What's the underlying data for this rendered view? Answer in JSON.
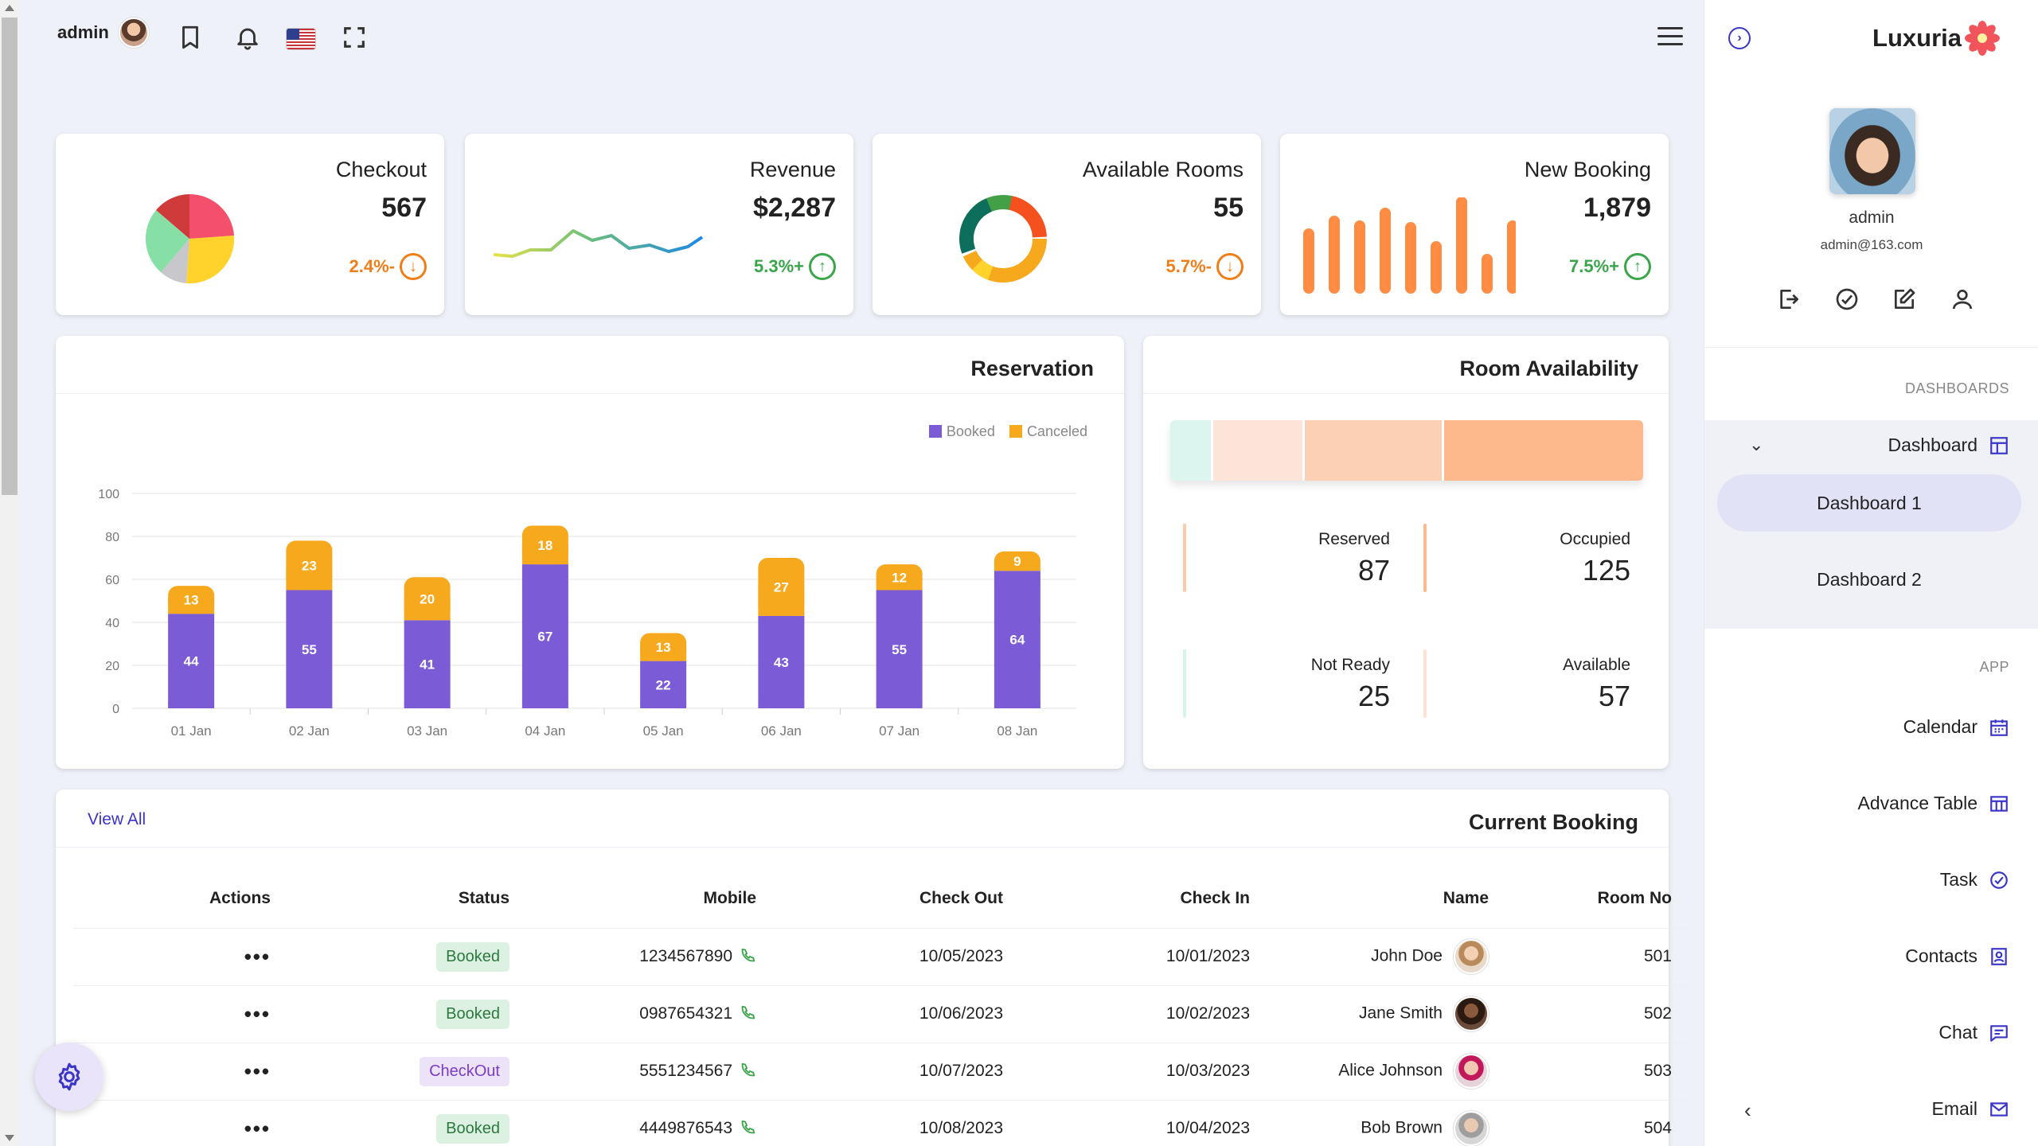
{
  "header": {
    "username": "admin"
  },
  "stats": [
    {
      "title": "Checkout",
      "value": "567",
      "trend": "2.4%-",
      "direction": "down"
    },
    {
      "title": "Revenue",
      "value": "$2,287",
      "trend": "5.3%+",
      "direction": "up"
    },
    {
      "title": "Available Rooms",
      "value": "55",
      "trend": "5.7%-",
      "direction": "down"
    },
    {
      "title": "New Booking",
      "value": "1,879",
      "trend": "7.5%+",
      "direction": "up"
    }
  ],
  "chart_data": {
    "type": "bar",
    "stacked": true,
    "title": "Reservation",
    "categories": [
      "01 Jan",
      "02 Jan",
      "03 Jan",
      "04 Jan",
      "05 Jan",
      "06 Jan",
      "07 Jan",
      "08 Jan"
    ],
    "series": [
      {
        "name": "Booked",
        "values": [
          44,
          55,
          41,
          67,
          22,
          43,
          55,
          64
        ],
        "color": "#7b5bd6"
      },
      {
        "name": "Canceled",
        "values": [
          13,
          23,
          20,
          18,
          13,
          27,
          12,
          9
        ],
        "color": "#f7a91e"
      }
    ],
    "yticks": [
      "0",
      "20",
      "40",
      "60",
      "80",
      "100"
    ],
    "ylim": [
      0,
      100
    ],
    "grid": true,
    "legend": "top-right"
  },
  "room_availability": {
    "title": "Room Availability",
    "segments": [
      {
        "value": 25,
        "color": "#ddf5ef"
      },
      {
        "value": 57,
        "color": "#fde4d9"
      },
      {
        "value": 87,
        "color": "#fcd0b5"
      },
      {
        "value": 125,
        "color": "#fdb88c"
      }
    ],
    "items": [
      {
        "label": "Reserved",
        "value": "87",
        "color": "#fbc9ad"
      },
      {
        "label": "Occupied",
        "value": "125",
        "color": "#fcb98f"
      },
      {
        "label": "Not Ready",
        "value": "25",
        "color": "#d6f3ec"
      },
      {
        "label": "Available",
        "value": "57",
        "color": "#fde1d3"
      }
    ]
  },
  "booking": {
    "title": "Current Booking",
    "view_all": "View All",
    "columns": [
      "Actions",
      "Status",
      "Mobile",
      "Check Out",
      "Check In",
      "Name",
      "Room No"
    ],
    "rows": [
      {
        "actions": "•••",
        "status": "Booked",
        "mobile": "1234567890",
        "check_out": "10/05/2023",
        "check_in": "10/01/2023",
        "name": "John Doe",
        "room": "501"
      },
      {
        "actions": "•••",
        "status": "Booked",
        "mobile": "0987654321",
        "check_out": "10/06/2023",
        "check_in": "10/02/2023",
        "name": "Jane Smith",
        "room": "502"
      },
      {
        "actions": "•••",
        "status": "CheckOut",
        "mobile": "5551234567",
        "check_out": "10/07/2023",
        "check_in": "10/03/2023",
        "name": "Alice Johnson",
        "room": "503"
      },
      {
        "actions": "•••",
        "status": "Booked",
        "mobile": "4449876543",
        "check_out": "10/08/2023",
        "check_in": "10/04/2023",
        "name": "Bob Brown",
        "room": "504"
      }
    ]
  },
  "sidebar": {
    "brand": "Luxuria",
    "profile_name": "admin",
    "profile_email": "admin@163.com",
    "group_dashboards": "DASHBOARDS",
    "dashboard_label": "Dashboard",
    "dashboard_subs": [
      "Dashboard 1",
      "Dashboard 2"
    ],
    "group_app": "APP",
    "app_items": [
      {
        "label": "Calendar",
        "icon": "calendar-icon"
      },
      {
        "label": "Advance Table",
        "icon": "table-icon"
      },
      {
        "label": "Task",
        "icon": "check-circle-icon"
      },
      {
        "label": "Contacts",
        "icon": "contacts-icon"
      },
      {
        "label": "Chat",
        "icon": "chat-icon"
      },
      {
        "label": "Email",
        "icon": "mail-icon"
      }
    ]
  },
  "colors": {
    "accent": "#3a35c8",
    "booked": "#7b5bd6",
    "canceled": "#f7a91e",
    "trend_up": "#3aa54b",
    "trend_down": "#f07e18"
  }
}
